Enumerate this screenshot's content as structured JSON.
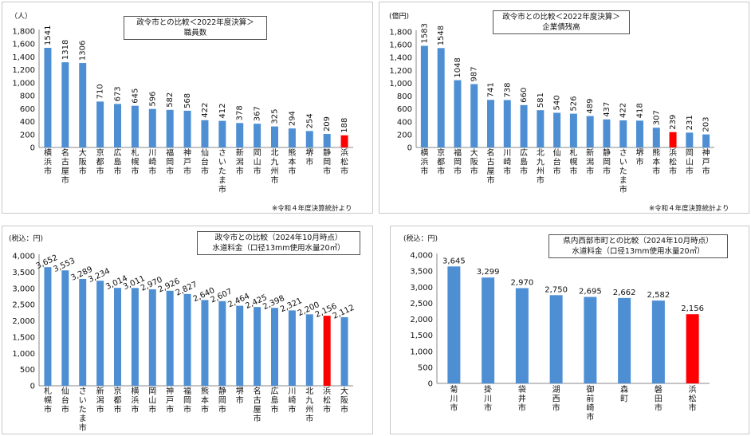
{
  "colors": {
    "bar": "#4e8fd4",
    "highlight": "#ff0000",
    "axis": "#888888",
    "grid": "#d9d9d9"
  },
  "chart_data": [
    {
      "type": "bar",
      "title_line1": "政令市との比較＜2022年度決算＞",
      "title_line2": "職員数",
      "unit": "（人）",
      "note": "※令和４年度決算統計より",
      "ylim": [
        0,
        1800
      ],
      "yticks": [
        "0",
        "200",
        "400",
        "600",
        "800",
        "1,000",
        "1,200",
        "1,400",
        "1,600",
        "1,800"
      ],
      "categories": [
        "横浜市",
        "名古屋市",
        "大阪市",
        "京都市",
        "広島市",
        "札幌市",
        "川崎市",
        "福岡市",
        "神戸市",
        "仙台市",
        "さいたま市",
        "新潟市",
        "岡山市",
        "北九州市",
        "熊本市",
        "堺市",
        "静岡市",
        "浜松市"
      ],
      "values": [
        1541,
        1318,
        1306,
        710,
        673,
        645,
        596,
        582,
        568,
        422,
        412,
        378,
        367,
        325,
        294,
        254,
        209,
        188
      ],
      "highlight": "浜松市"
    },
    {
      "type": "bar",
      "title_line1": "政令市との比較＜2022年度決算＞",
      "title_line2": "企業債残高",
      "unit": "(億円)",
      "note": "※令和４年度決算統計より",
      "ylim": [
        0,
        1800
      ],
      "yticks": [
        "0",
        "200",
        "400",
        "600",
        "800",
        "1,000",
        "1,200",
        "1,400",
        "1,600",
        "1,800"
      ],
      "categories": [
        "横浜市",
        "京都市",
        "福岡市",
        "大阪市",
        "名古屋市",
        "川崎市",
        "広島市",
        "北九州市",
        "仙台市",
        "札幌市",
        "新潟市",
        "静岡市",
        "さいたま市",
        "堺市",
        "熊本市",
        "浜松市",
        "岡山市",
        "神戸市"
      ],
      "values": [
        1583,
        1548,
        1048,
        987,
        741,
        738,
        660,
        581,
        540,
        526,
        489,
        437,
        422,
        418,
        307,
        239,
        231,
        203
      ],
      "highlight": "浜松市"
    },
    {
      "type": "bar",
      "title_line1": "政令市との比較（2024年10月時点）",
      "title_line2": "水道料金（口径13mm使用水量20㎥）",
      "unit": "(税込：円)",
      "ylim": [
        0,
        4000
      ],
      "yticks": [
        "0",
        "500",
        "1,000",
        "1,500",
        "2,000",
        "2,500",
        "3,000",
        "3,500",
        "4,000"
      ],
      "categories": [
        "札幌市",
        "仙台市",
        "さいたま市",
        "新潟市",
        "京都市",
        "横浜市",
        "岡山市",
        "神戸市",
        "福岡市",
        "熊本市",
        "静岡市",
        "堺市",
        "名古屋市",
        "広島市",
        "川崎市",
        "北九州市",
        "浜松市",
        "大阪市"
      ],
      "values": [
        3652,
        3553,
        3289,
        3234,
        3014,
        3011,
        2970,
        2926,
        2827,
        2640,
        2607,
        2464,
        2425,
        2398,
        2321,
        2200,
        2156,
        2112
      ],
      "labels": [
        "3,652",
        "3,553",
        "3,289",
        "3,234",
        "3,014",
        "3,011",
        "2,970",
        "2,926",
        "2,827",
        "2,640",
        "2,607",
        "2,464",
        "2,425",
        "2,398",
        "2,321",
        "2,200",
        "2,156",
        "2,112"
      ],
      "highlight": "浜松市"
    },
    {
      "type": "bar",
      "title_line1": "県内西部市町との比較（2024年10月時点）",
      "title_line2": "水道料金（口径13mm使用水量20㎥）",
      "unit": "(税込：円)",
      "ylim": [
        0,
        4000
      ],
      "yticks": [
        "0",
        "500",
        "1,000",
        "1,500",
        "2,000",
        "2,500",
        "3,000",
        "3,500",
        "4,000"
      ],
      "categories": [
        "菊川市",
        "掛川市",
        "袋井市",
        "湖西市",
        "御前崎市",
        "森町",
        "磐田市",
        "浜松市"
      ],
      "values": [
        3645,
        3299,
        2970,
        2750,
        2695,
        2662,
        2582,
        2156
      ],
      "labels": [
        "3,645",
        "3,299",
        "2,970",
        "2,750",
        "2,695",
        "2,662",
        "2,582",
        "2,156"
      ],
      "highlight": "浜松市"
    }
  ]
}
